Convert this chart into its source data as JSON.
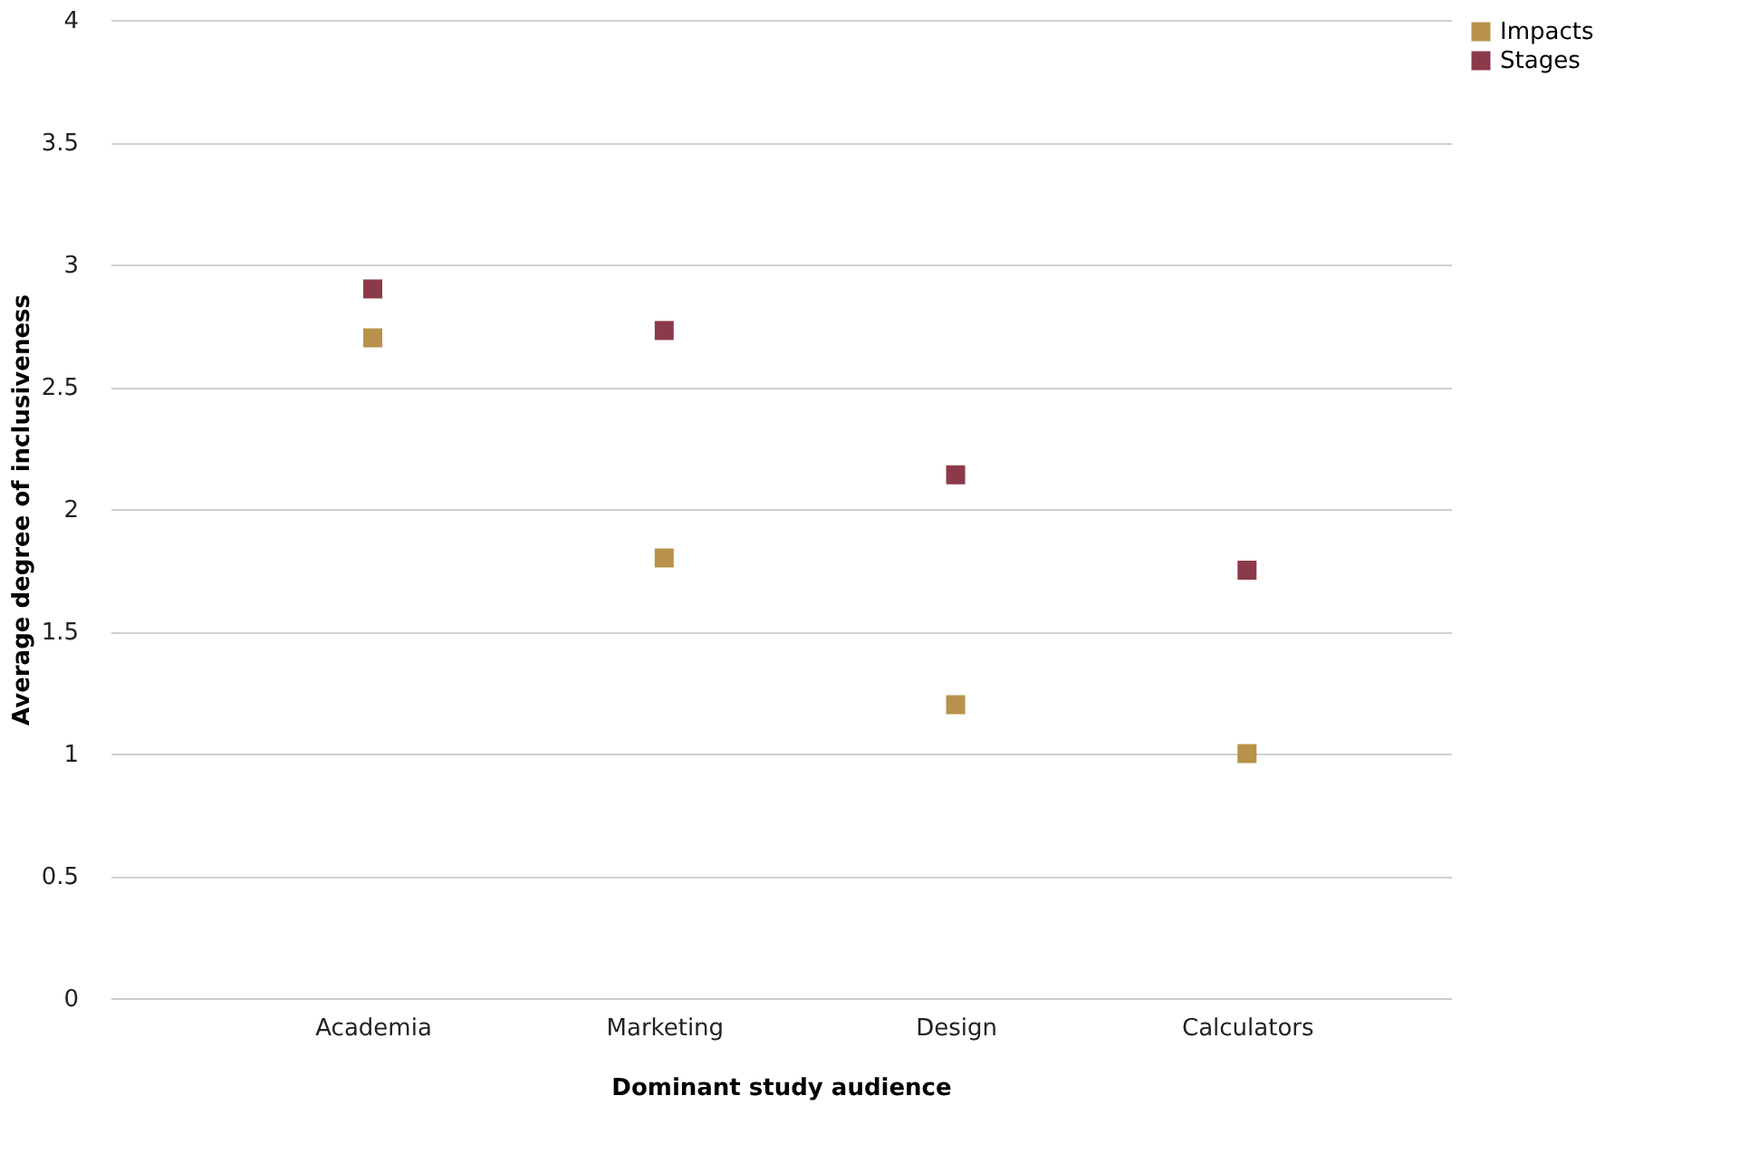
{
  "chart_data": {
    "type": "scatter",
    "xlabel": "Dominant study audience",
    "ylabel": "Average degree of inclusiveness",
    "categories": [
      "Academia",
      "Marketing",
      "Design",
      "Calculators"
    ],
    "series": [
      {
        "name": "Impacts",
        "color": "#b8914a",
        "values": [
          2.7,
          1.8,
          1.2,
          1.0
        ]
      },
      {
        "name": "Stages",
        "color": "#8b3a4a",
        "values": [
          2.9,
          2.73,
          2.14,
          1.75
        ]
      }
    ],
    "ylim": [
      0,
      4
    ],
    "yticks": [
      0,
      0.5,
      1,
      1.5,
      2,
      2.5,
      3,
      3.5,
      4
    ],
    "grid": "y",
    "legend": "right",
    "marker": "square"
  }
}
